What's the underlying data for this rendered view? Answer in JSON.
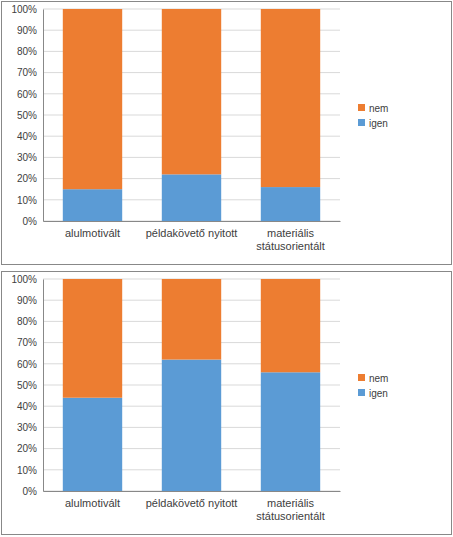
{
  "chart_data": [
    {
      "type": "bar",
      "stacked": true,
      "categories": [
        "alulmotivált",
        "példakövető nyitott",
        "materiális státusorientált"
      ],
      "series": [
        {
          "name": "igen",
          "color": "#5b9bd5",
          "values": [
            15,
            22,
            16
          ]
        },
        {
          "name": "nem",
          "color": "#ed7d31",
          "values": [
            85,
            78,
            84
          ]
        }
      ],
      "ylim": [
        0,
        100
      ],
      "yticks": [
        {
          "value": 0,
          "label": "0%"
        },
        {
          "value": 10,
          "label": "10%"
        },
        {
          "value": 20,
          "label": "20%"
        },
        {
          "value": 30,
          "label": "30%"
        },
        {
          "value": 40,
          "label": "40%"
        },
        {
          "value": 50,
          "label": "50%"
        },
        {
          "value": 60,
          "label": "60%"
        },
        {
          "value": 70,
          "label": "70%"
        },
        {
          "value": 80,
          "label": "80%"
        },
        {
          "value": 90,
          "label": "90%"
        },
        {
          "value": 100,
          "label": "100%"
        }
      ],
      "grid": true,
      "legend": "right"
    },
    {
      "type": "bar",
      "stacked": true,
      "categories": [
        "alulmotivált",
        "példakövető nyitott",
        "materiális státusorientált"
      ],
      "series": [
        {
          "name": "igen",
          "color": "#5b9bd5",
          "values": [
            44,
            62,
            56
          ]
        },
        {
          "name": "nem",
          "color": "#ed7d31",
          "values": [
            56,
            38,
            44
          ]
        }
      ],
      "ylim": [
        0,
        100
      ],
      "yticks": [
        {
          "value": 0,
          "label": "0%"
        },
        {
          "value": 10,
          "label": "10%"
        },
        {
          "value": 20,
          "label": "20%"
        },
        {
          "value": 30,
          "label": "30%"
        },
        {
          "value": 40,
          "label": "40%"
        },
        {
          "value": 50,
          "label": "50%"
        },
        {
          "value": 60,
          "label": "60%"
        },
        {
          "value": 70,
          "label": "70%"
        },
        {
          "value": 80,
          "label": "80%"
        },
        {
          "value": 90,
          "label": "90%"
        },
        {
          "value": 100,
          "label": "100%"
        }
      ],
      "grid": true,
      "legend": "right"
    }
  ]
}
